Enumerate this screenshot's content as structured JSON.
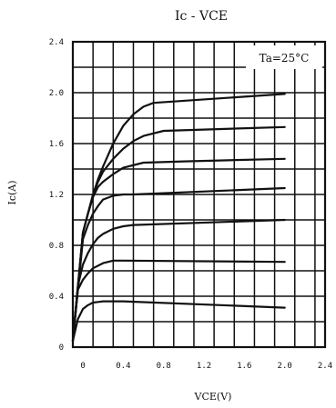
{
  "chart_data": {
    "type": "line",
    "title": "Ic - VCE",
    "xlabel": "VCE(V)",
    "ylabel": "Ic(A)",
    "annotation": "Ta=25°C",
    "xlim": [
      -0.1,
      2.4
    ],
    "ylim": [
      0,
      2.4
    ],
    "x_ticks": [
      0,
      0.4,
      0.8,
      1.2,
      1.6,
      2.0,
      2.4
    ],
    "x_tick_labels": [
      "0",
      "0.4",
      "0.8",
      "1.2",
      "1.6",
      "2.0",
      "2.4"
    ],
    "y_ticks": [
      0,
      0.4,
      0.8,
      1.2,
      1.6,
      2.0,
      2.4
    ],
    "y_tick_labels": [
      "0",
      "0.4",
      "0.8",
      "1.2",
      "1.6",
      "2.0",
      "2.4"
    ],
    "x_grid_step": 0.2,
    "y_grid_step": 0.2,
    "grid": true,
    "series": [
      {
        "x": [
          -0.1,
          -0.05,
          0.0,
          0.05,
          0.1,
          0.15,
          0.2,
          0.3,
          0.4,
          2.0
        ],
        "y": [
          0.05,
          0.22,
          0.3,
          0.33,
          0.35,
          0.355,
          0.36,
          0.36,
          0.36,
          0.31
        ]
      },
      {
        "x": [
          -0.1,
          -0.05,
          0.0,
          0.05,
          0.1,
          0.2,
          0.3,
          0.4,
          2.0
        ],
        "y": [
          0.05,
          0.45,
          0.53,
          0.58,
          0.62,
          0.66,
          0.68,
          0.68,
          0.67
        ]
      },
      {
        "x": [
          -0.1,
          -0.05,
          0.0,
          0.05,
          0.1,
          0.15,
          0.2,
          0.3,
          0.4,
          0.5,
          2.0
        ],
        "y": [
          0.05,
          0.48,
          0.65,
          0.74,
          0.81,
          0.86,
          0.89,
          0.93,
          0.95,
          0.96,
          1.0
        ]
      },
      {
        "x": [
          -0.1,
          0.0,
          0.05,
          0.1,
          0.15,
          0.2,
          0.3,
          0.4,
          0.5,
          2.0
        ],
        "y": [
          0.05,
          0.85,
          0.96,
          1.05,
          1.11,
          1.16,
          1.19,
          1.2,
          1.2,
          1.25
        ]
      },
      {
        "x": [
          -0.1,
          0.0,
          0.05,
          0.1,
          0.15,
          0.2,
          0.3,
          0.4,
          0.6,
          1.0,
          2.0
        ],
        "y": [
          0.05,
          0.9,
          1.05,
          1.18,
          1.26,
          1.3,
          1.36,
          1.41,
          1.45,
          1.46,
          1.48
        ]
      },
      {
        "x": [
          -0.1,
          0.0,
          0.05,
          0.1,
          0.15,
          0.2,
          0.3,
          0.4,
          0.5,
          0.6,
          0.8,
          2.0
        ],
        "y": [
          0.05,
          0.9,
          1.05,
          1.2,
          1.3,
          1.38,
          1.48,
          1.56,
          1.62,
          1.66,
          1.7,
          1.73
        ]
      },
      {
        "x": [
          -0.1,
          0.0,
          0.05,
          0.1,
          0.15,
          0.2,
          0.3,
          0.4,
          0.5,
          0.6,
          0.7,
          2.0
        ],
        "y": [
          0.05,
          0.9,
          1.05,
          1.2,
          1.32,
          1.42,
          1.6,
          1.74,
          1.83,
          1.89,
          1.92,
          1.99
        ]
      }
    ]
  }
}
